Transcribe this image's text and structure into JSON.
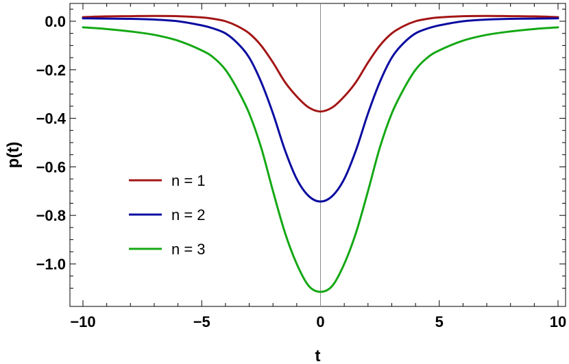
{
  "chart_data": {
    "type": "line",
    "title": "",
    "xlabel": "t",
    "ylabel": "p(t)",
    "xlim": [
      -10,
      10
    ],
    "ylim": [
      -1.15,
      0.08
    ],
    "grid": false,
    "legend_position": "left-center",
    "x_ticks": [
      -10,
      -5,
      0,
      5,
      10
    ],
    "x_tick_labels": [
      "−10",
      "−5",
      "0",
      "5",
      "10"
    ],
    "y_ticks": [
      0.0,
      -0.2,
      -0.4,
      -0.6,
      -0.8,
      -1.0
    ],
    "y_tick_labels": [
      "0.0",
      "−0.2",
      "−0.4",
      "−0.6",
      "−0.8",
      "−1.0"
    ],
    "x": [
      -10,
      -9,
      -8,
      -7,
      -6,
      -5,
      -4.5,
      -4,
      -3.5,
      -3,
      -2.5,
      -2,
      -1.5,
      -1,
      -0.5,
      0,
      0.5,
      1,
      1.5,
      2,
      2.5,
      3,
      3.5,
      4,
      4.5,
      5,
      6,
      7,
      8,
      9,
      10
    ],
    "series": [
      {
        "name": "n = 1",
        "color": "#a31515",
        "values": [
          0.017,
          0.02,
          0.021,
          0.022,
          0.021,
          0.016,
          0.01,
          0.0,
          -0.02,
          -0.05,
          -0.1,
          -0.17,
          -0.25,
          -0.31,
          -0.355,
          -0.372,
          -0.355,
          -0.31,
          -0.25,
          -0.17,
          -0.1,
          -0.05,
          -0.02,
          0.0,
          0.01,
          0.016,
          0.021,
          0.022,
          0.021,
          0.02,
          0.017
        ]
      },
      {
        "name": "n = 2",
        "color": "#0a0aa0",
        "values": [
          0.012,
          0.011,
          0.01,
          0.007,
          0.0,
          -0.017,
          -0.03,
          -0.05,
          -0.09,
          -0.15,
          -0.25,
          -0.38,
          -0.53,
          -0.65,
          -0.72,
          -0.743,
          -0.72,
          -0.65,
          -0.53,
          -0.38,
          -0.25,
          -0.15,
          -0.09,
          -0.05,
          -0.03,
          -0.017,
          0.0,
          0.007,
          0.01,
          0.011,
          0.012
        ]
      },
      {
        "name": "n = 3",
        "color": "#14a814",
        "values": [
          -0.025,
          -0.032,
          -0.042,
          -0.056,
          -0.08,
          -0.12,
          -0.15,
          -0.2,
          -0.28,
          -0.38,
          -0.52,
          -0.7,
          -0.87,
          -1.0,
          -1.09,
          -1.115,
          -1.09,
          -1.0,
          -0.87,
          -0.7,
          -0.52,
          -0.38,
          -0.28,
          -0.2,
          -0.15,
          -0.12,
          -0.08,
          -0.056,
          -0.042,
          -0.032,
          -0.025
        ]
      }
    ]
  }
}
